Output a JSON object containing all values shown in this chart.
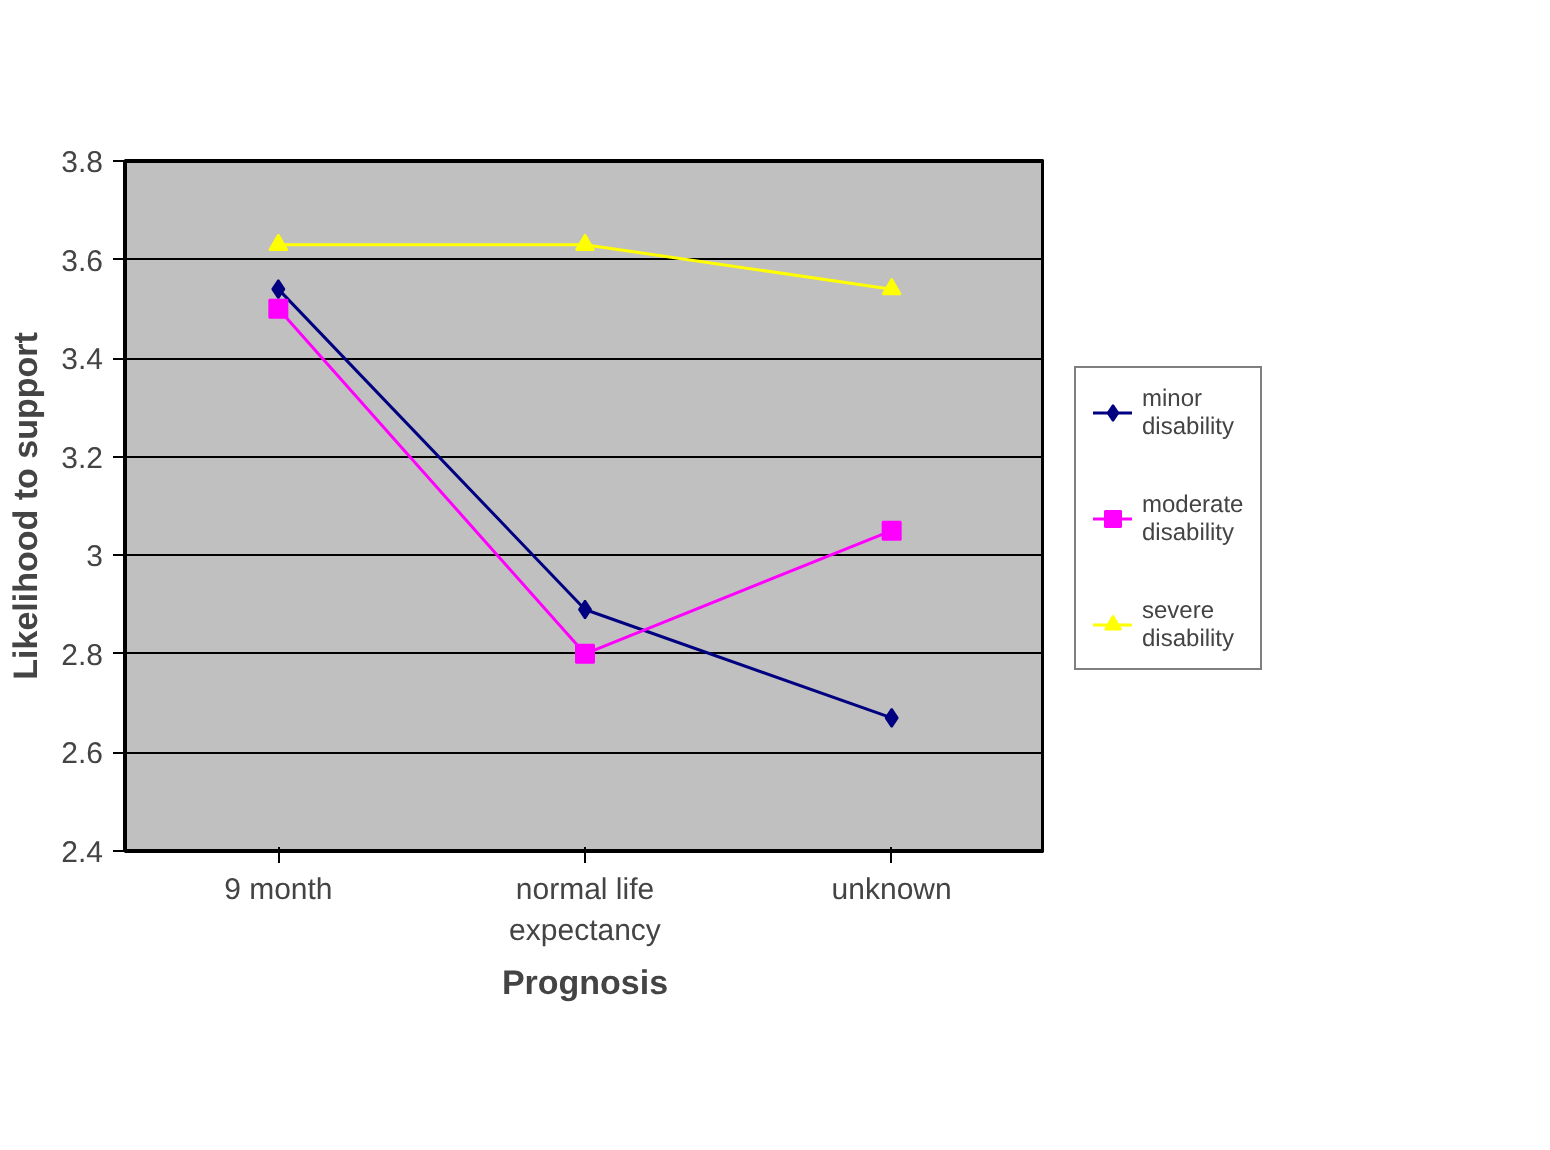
{
  "chart_data": {
    "type": "line",
    "xlabel": "Prognosis",
    "ylabel": "Likelihood to support",
    "categories": [
      "9 month",
      "normal life expectancy",
      "unknown"
    ],
    "series": [
      {
        "name": "minor disability",
        "color": "#000080",
        "marker": "diamond",
        "values": [
          3.54,
          2.89,
          2.67
        ]
      },
      {
        "name": "moderate disability",
        "color": "#ff00ff",
        "marker": "square",
        "values": [
          3.5,
          2.8,
          3.05
        ]
      },
      {
        "name": "severe disability",
        "color": "#ffff00",
        "marker": "triangle",
        "values": [
          3.63,
          3.63,
          3.54
        ]
      }
    ],
    "ylim": [
      2.4,
      3.8
    ],
    "yticks": [
      2.4,
      2.6,
      2.8,
      3,
      3.2,
      3.4,
      3.6,
      3.8
    ],
    "grid": "y",
    "legend": "right",
    "line_style": "solid"
  }
}
